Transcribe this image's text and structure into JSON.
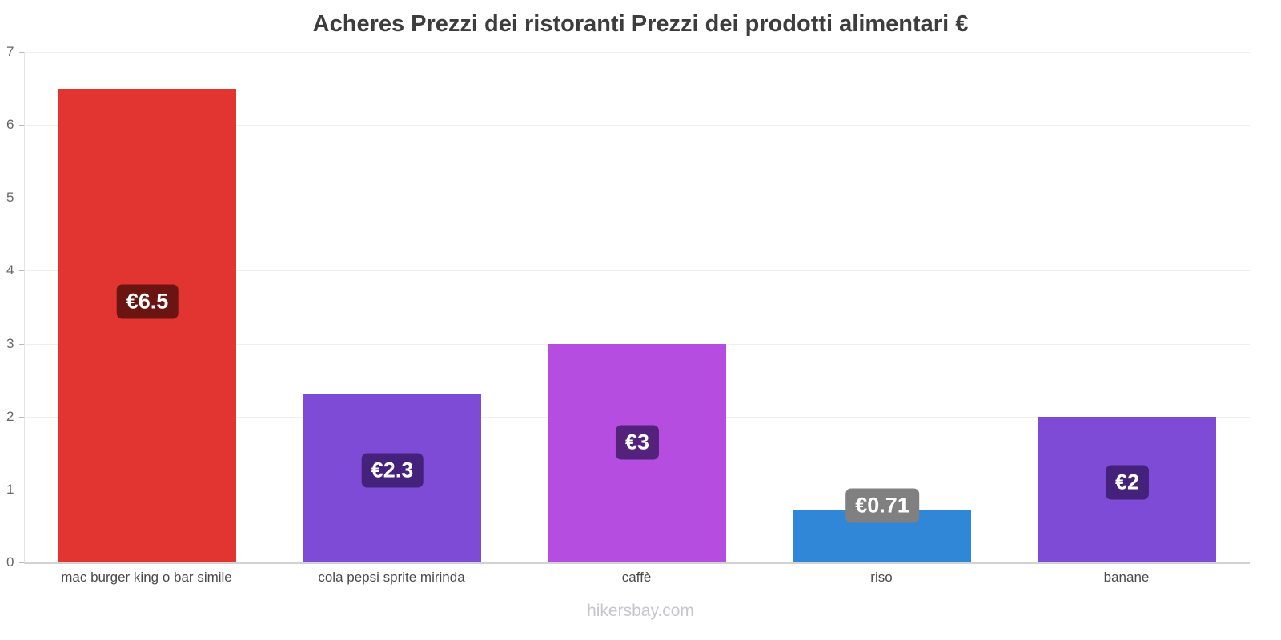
{
  "chart": {
    "title": "Acheres Prezzi dei ristoranti Prezzi dei prodotti alimentari €"
  },
  "chart_data": {
    "type": "bar",
    "title": "Acheres Prezzi dei ristoranti Prezzi dei prodotti alimentari €",
    "categories": [
      "mac burger king o bar simile",
      "cola pepsi sprite mirinda",
      "caffè",
      "riso",
      "banane"
    ],
    "values": [
      6.5,
      2.3,
      3,
      0.71,
      2
    ],
    "value_labels": [
      "€6.5",
      "€2.3",
      "€3",
      "€0.71",
      "€2"
    ],
    "bar_colors": [
      "#e23430",
      "#7d4bd5",
      "#b44de0",
      "#3087d8",
      "#7d4bd5"
    ],
    "badge_colors": [
      "#6b1512",
      "#44217b",
      "#54227b",
      "#808080",
      "#44217b"
    ],
    "xlabel": "",
    "ylabel": "",
    "ylim": [
      0,
      7
    ],
    "yticks": [
      0,
      1,
      2,
      3,
      4,
      5,
      6,
      7
    ],
    "grid": true,
    "legend": false
  },
  "footer": {
    "text": "hikersbay.com"
  }
}
